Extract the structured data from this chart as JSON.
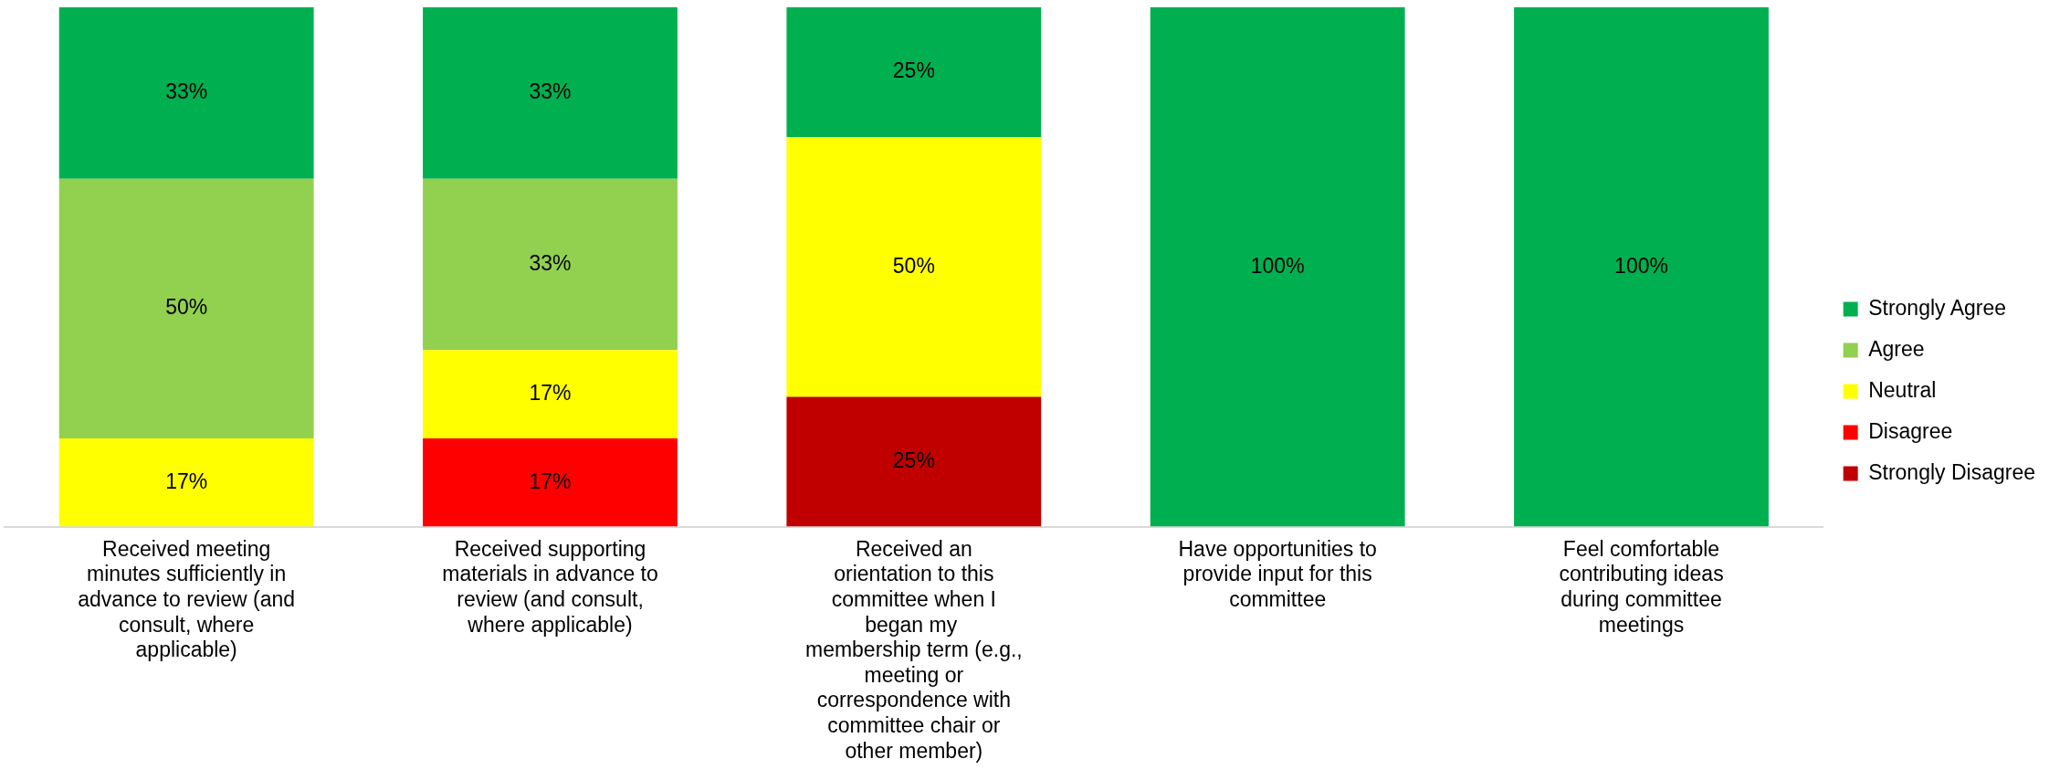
{
  "chart_data": {
    "type": "bar",
    "stacked": true,
    "legend": "right",
    "grid": false,
    "tick_labels": "x",
    "ylim": [
      0,
      100
    ],
    "categories": [
      "Received meeting minutes sufficiently in advance to review (and consult, where applicable)",
      "Received supporting materials in advance to review (and consult, where applicable)",
      "Received an orientation to this committee when I began my  membership term (e.g., meeting or correspondence with committee chair or other member)",
      "Have opportunities to provide input for this committee",
      "Feel comfortable contributing ideas during committee meetings"
    ],
    "series": [
      {
        "name": "Strongly Disagree",
        "color": "#c00000",
        "values": [
          null,
          null,
          25,
          null,
          null
        ],
        "value_labels": [
          null,
          null,
          "25%",
          null,
          null
        ]
      },
      {
        "name": "Disagree",
        "color": "#ff0000",
        "values": [
          null,
          17,
          null,
          null,
          null
        ],
        "value_labels": [
          null,
          "17%",
          null,
          null,
          null
        ]
      },
      {
        "name": "Neutral",
        "color": "#ffff00",
        "values": [
          17,
          17,
          50,
          null,
          null
        ],
        "value_labels": [
          "17%",
          "17%",
          "50%",
          null,
          null
        ]
      },
      {
        "name": "Agree",
        "color": "#92d050",
        "values": [
          50,
          33,
          null,
          null,
          null
        ],
        "value_labels": [
          "50%",
          "33%",
          null,
          null,
          null
        ]
      },
      {
        "name": "Strongly Agree",
        "color": "#00b050",
        "values": [
          33,
          33,
          25,
          100,
          100
        ],
        "value_labels": [
          "33%",
          "33%",
          "25%",
          "100%",
          "100%"
        ]
      }
    ]
  }
}
